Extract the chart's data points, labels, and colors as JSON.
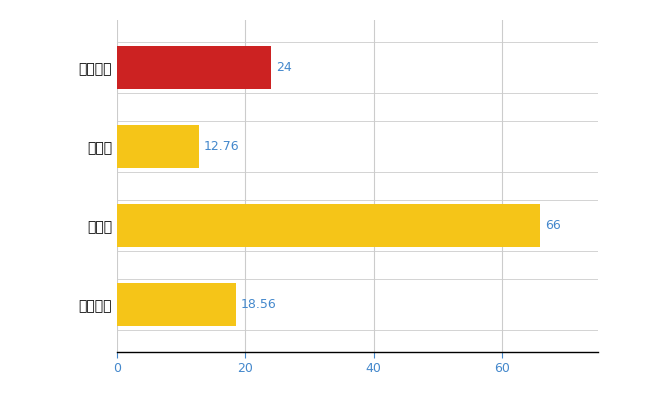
{
  "categories": [
    "各務原市",
    "県平均",
    "県最大",
    "全国平均"
  ],
  "values": [
    24,
    12.76,
    66,
    18.56
  ],
  "bar_colors": [
    "#cc2222",
    "#f5c518",
    "#f5c518",
    "#f5c518"
  ],
  "label_color": "#4488cc",
  "labels": [
    "24",
    "12.76",
    "66",
    "18.56"
  ],
  "xlim": [
    0,
    75
  ],
  "xticks": [
    0,
    20,
    40,
    60
  ],
  "background_color": "#ffffff",
  "grid_color": "#cccccc",
  "bar_height": 0.55
}
